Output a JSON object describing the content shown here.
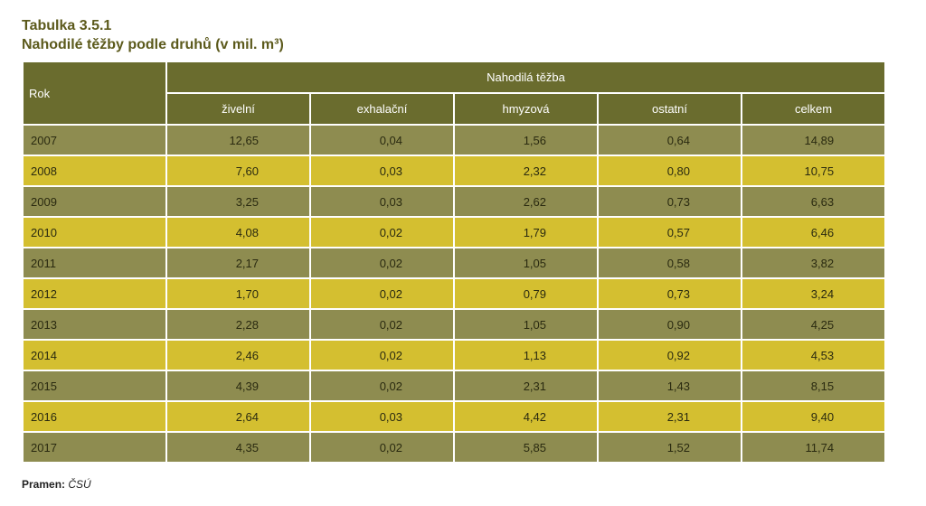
{
  "title": {
    "line1": "Tabulka 3.5.1",
    "line2": "Nahodilé těžby podle druhů (v mil. m³)"
  },
  "table": {
    "rok_header": "Rok",
    "group_header": "Nahodilá těžba",
    "columns": [
      "živelní",
      "exhalační",
      "hmyzová",
      "ostatní",
      "celkem"
    ],
    "rows": [
      {
        "year": "2007",
        "values": [
          "12,65",
          "0,04",
          "1,56",
          "0,64",
          "14,89"
        ]
      },
      {
        "year": "2008",
        "values": [
          "7,60",
          "0,03",
          "2,32",
          "0,80",
          "10,75"
        ]
      },
      {
        "year": "2009",
        "values": [
          "3,25",
          "0,03",
          "2,62",
          "0,73",
          "6,63"
        ]
      },
      {
        "year": "2010",
        "values": [
          "4,08",
          "0,02",
          "1,79",
          "0,57",
          "6,46"
        ]
      },
      {
        "year": "2011",
        "values": [
          "2,17",
          "0,02",
          "1,05",
          "0,58",
          "3,82"
        ]
      },
      {
        "year": "2012",
        "values": [
          "1,70",
          "0,02",
          "0,79",
          "0,73",
          "3,24"
        ]
      },
      {
        "year": "2013",
        "values": [
          "2,28",
          "0,02",
          "1,05",
          "0,90",
          "4,25"
        ]
      },
      {
        "year": "2014",
        "values": [
          "2,46",
          "0,02",
          "1,13",
          "0,92",
          "4,53"
        ]
      },
      {
        "year": "2015",
        "values": [
          "4,39",
          "0,02",
          "2,31",
          "1,43",
          "8,15"
        ]
      },
      {
        "year": "2016",
        "values": [
          "2,64",
          "0,03",
          "4,42",
          "2,31",
          "9,40"
        ]
      },
      {
        "year": "2017",
        "values": [
          "4,35",
          "0,02",
          "5,85",
          "1,52",
          "11,74"
        ]
      }
    ]
  },
  "source": {
    "label": "Pramen:",
    "value": "ČSÚ"
  },
  "colors": {
    "header": "#6a6c2e",
    "row_dark": "#8e8c50",
    "row_light": "#d4bf30",
    "title": "#5c5a1c"
  }
}
